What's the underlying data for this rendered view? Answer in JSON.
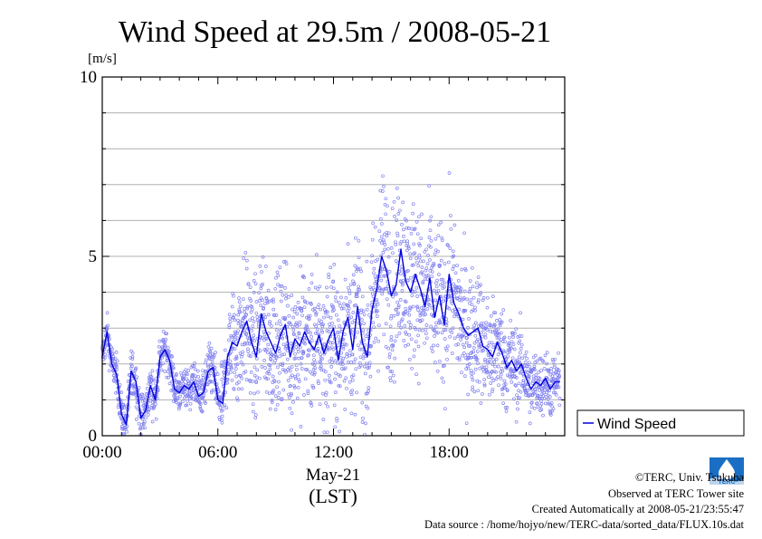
{
  "chart_data": {
    "type": "scatter",
    "title": "Wind Speed at 29.5m / 2008-05-21",
    "unit_label": "[m/s]",
    "ylim": [
      0,
      10
    ],
    "yticks": [
      0,
      5,
      10
    ],
    "ytick_labels": [
      "0",
      "5",
      "10"
    ],
    "xlim": [
      0,
      24
    ],
    "xticks": [
      0,
      6,
      12,
      18
    ],
    "xtick_labels": [
      "00:00",
      "06:00",
      "12:00",
      "18:00"
    ],
    "xlabel_date": "May-21",
    "xlabel_zone": "(LST)",
    "grid": true,
    "legend": {
      "placement": "right",
      "label": "Wind Speed"
    },
    "series": [
      {
        "name": "Wind Speed",
        "style": "line+points",
        "line_color": "#0000dd",
        "point_color": "#8080f0",
        "smoothed": {
          "x": [
            0.0,
            0.25,
            0.5,
            0.75,
            1.0,
            1.25,
            1.5,
            1.75,
            2.0,
            2.25,
            2.5,
            2.75,
            3.0,
            3.25,
            3.5,
            3.75,
            4.0,
            4.25,
            4.5,
            4.75,
            5.0,
            5.25,
            5.5,
            5.75,
            6.0,
            6.25,
            6.5,
            6.75,
            7.0,
            7.25,
            7.5,
            7.75,
            8.0,
            8.25,
            8.5,
            8.75,
            9.0,
            9.25,
            9.5,
            9.75,
            10.0,
            10.25,
            10.5,
            10.75,
            11.0,
            11.25,
            11.5,
            11.75,
            12.0,
            12.25,
            12.5,
            12.75,
            13.0,
            13.25,
            13.5,
            13.75,
            14.0,
            14.25,
            14.5,
            14.75,
            15.0,
            15.25,
            15.5,
            15.75,
            16.0,
            16.25,
            16.5,
            16.75,
            17.0,
            17.25,
            17.5,
            17.75,
            18.0,
            18.25,
            18.5,
            18.75,
            19.0,
            19.25,
            19.5,
            19.75,
            20.0,
            20.25,
            20.5,
            20.75,
            21.0,
            21.25,
            21.5,
            21.75,
            22.0,
            22.25,
            22.5,
            22.75,
            23.0,
            23.25,
            23.5,
            23.75
          ],
          "y": [
            2.2,
            2.9,
            2.0,
            1.7,
            0.6,
            0.3,
            1.8,
            1.5,
            0.5,
            0.7,
            1.4,
            1.0,
            2.2,
            2.4,
            2.1,
            1.3,
            1.2,
            1.4,
            1.3,
            1.5,
            1.1,
            1.2,
            1.8,
            1.9,
            1.0,
            0.9,
            2.2,
            2.6,
            2.5,
            2.9,
            3.2,
            2.6,
            2.2,
            3.4,
            2.9,
            2.6,
            2.3,
            2.8,
            3.1,
            2.2,
            2.7,
            2.5,
            2.9,
            2.6,
            2.4,
            2.8,
            2.3,
            2.7,
            3.0,
            2.1,
            2.9,
            3.3,
            2.4,
            3.6,
            2.6,
            2.2,
            3.5,
            4.1,
            5.0,
            4.6,
            3.9,
            4.2,
            5.2,
            4.3,
            4.0,
            4.5,
            4.1,
            3.6,
            4.4,
            3.3,
            3.9,
            3.1,
            4.5,
            3.7,
            3.4,
            3.0,
            2.8,
            2.9,
            3.0,
            2.5,
            2.4,
            2.2,
            2.6,
            2.3,
            1.9,
            2.1,
            1.8,
            2.0,
            1.6,
            1.3,
            1.5,
            1.4,
            1.6,
            1.3,
            1.5,
            1.5
          ]
        },
        "scatter_spread": {
          "x": [
            0,
            2,
            4,
            6,
            7,
            10,
            13,
            14.5,
            15.5,
            17,
            18.5,
            20,
            22,
            24
          ],
          "sd": [
            0.25,
            0.3,
            0.25,
            0.35,
            0.9,
            0.95,
            1.0,
            1.2,
            1.2,
            1.1,
            1.0,
            0.8,
            0.5,
            0.35
          ]
        }
      }
    ]
  },
  "logo": {
    "text": "TERC"
  },
  "credits": [
    "©TERC, Univ. Tsukuba",
    "Observed at TERC Tower site",
    "Created Automatically at 2008-05-21/23:55:47",
    "Data source : /home/hojyo/new/TERC-data/sorted_data/FLUX.10s.dat"
  ]
}
